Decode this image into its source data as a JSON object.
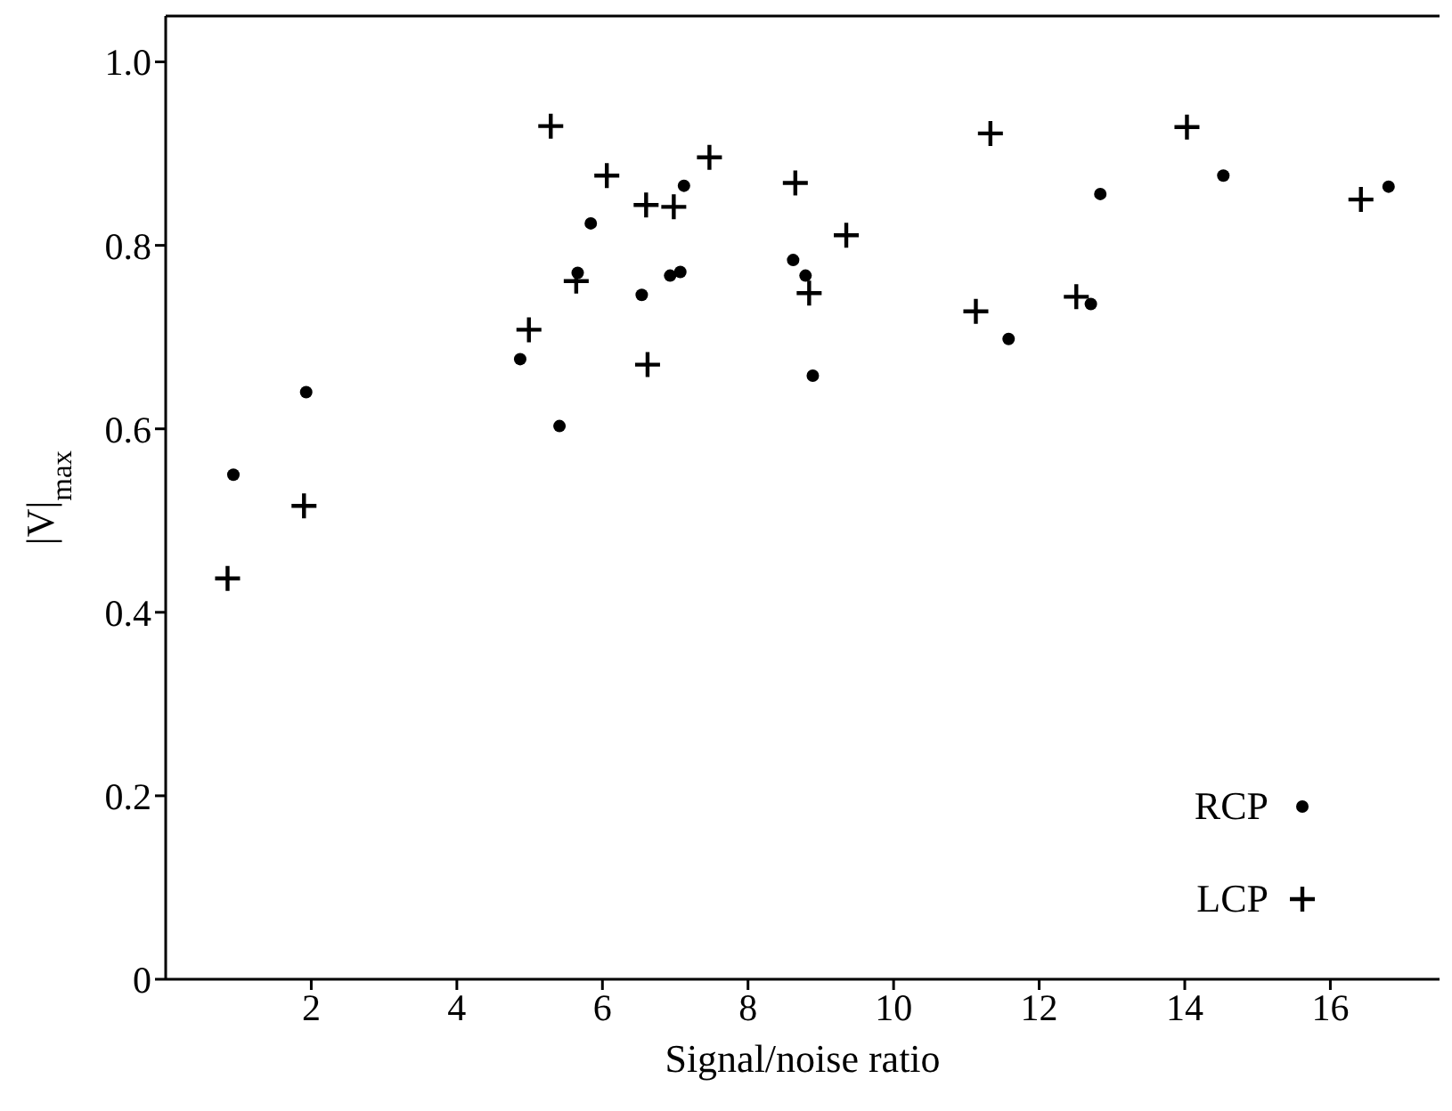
{
  "chart_data": {
    "type": "scatter",
    "xlabel": "Signal/noise ratio",
    "ylabel": "|V|$_{max}$",
    "xlim": [
      0,
      17.5
    ],
    "xticks": [
      2,
      4,
      6,
      8,
      10,
      12,
      14,
      16
    ],
    "ylim": [
      0,
      1.05
    ],
    "yticks": [
      0,
      0.2,
      0.4,
      0.6,
      0.8,
      {
        "value": 1,
        "label": "1.0"
      }
    ],
    "grid": false,
    "legend": "bottom right",
    "series": [
      {
        "name": "RCP",
        "color": "#000000",
        "marker": "circle",
        "x": [
          0.93,
          1.93,
          4.87,
          5.41,
          5.66,
          5.84,
          6.54,
          6.93,
          7.07,
          7.12,
          8.62,
          8.79,
          8.89,
          11.58,
          12.71,
          12.84,
          14.53,
          16.8
        ],
        "values": [
          0.55,
          0.64,
          0.676,
          0.603,
          0.77,
          0.824,
          0.746,
          0.767,
          0.771,
          0.865,
          0.784,
          0.767,
          0.658,
          0.698,
          0.736,
          0.856,
          0.876,
          0.864
        ]
      },
      {
        "name": "LCP",
        "color": "#000000",
        "marker": "cross",
        "x": [
          0.85,
          1.9,
          4.99,
          5.29,
          5.64,
          6.06,
          6.6,
          6.98,
          7.47,
          6.62,
          8.65,
          8.84,
          9.35,
          11.33,
          11.13,
          12.51,
          14.03,
          16.42
        ],
        "values": [
          0.437,
          0.516,
          0.708,
          0.93,
          0.761,
          0.876,
          0.844,
          0.842,
          0.896,
          0.67,
          0.868,
          0.748,
          0.811,
          0.922,
          0.728,
          0.744,
          0.929,
          0.85
        ]
      }
    ]
  }
}
